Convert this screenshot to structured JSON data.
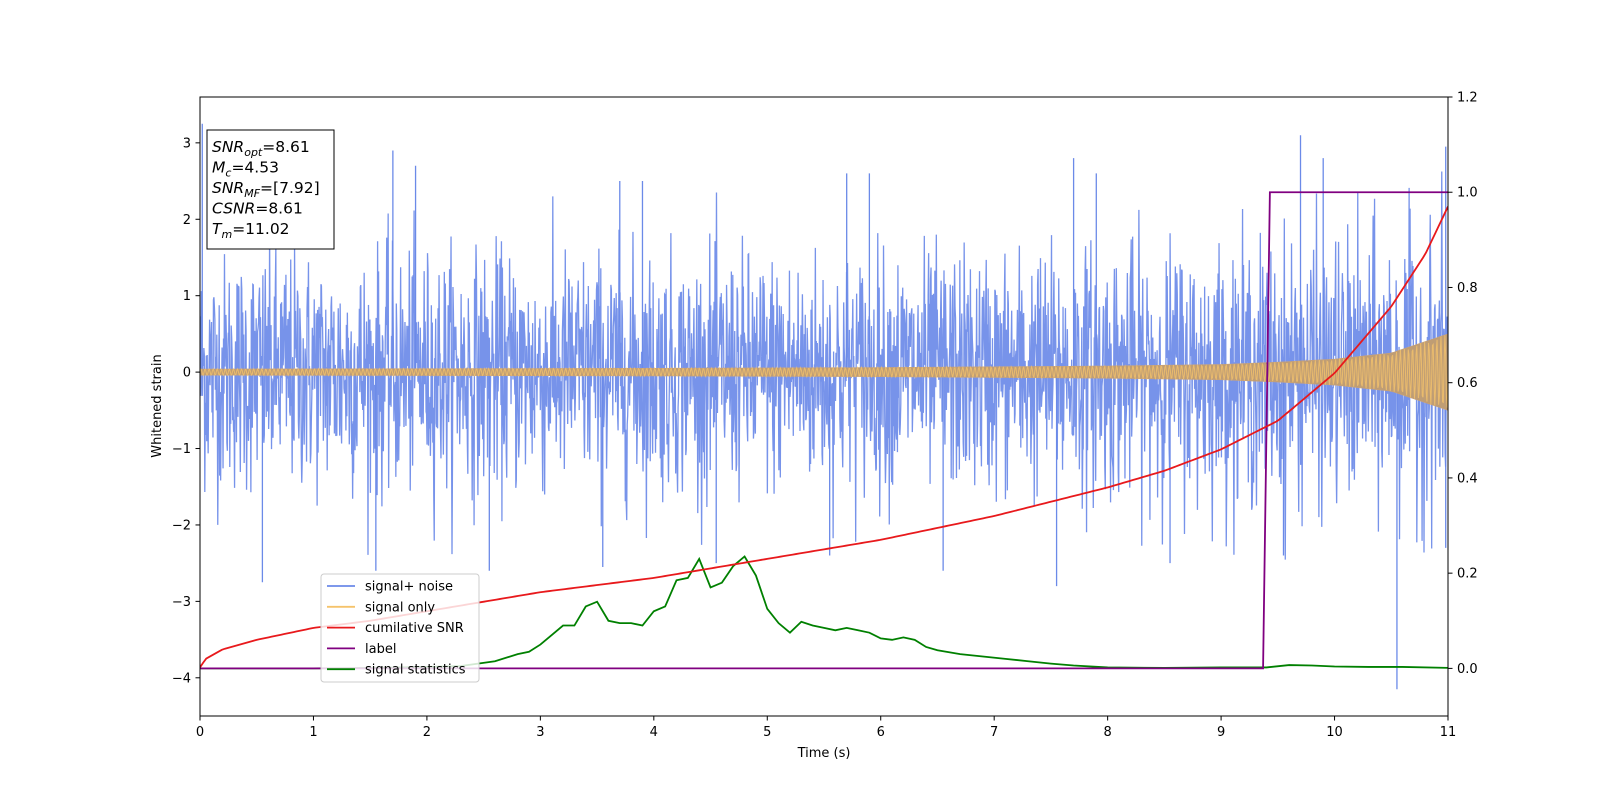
{
  "chart_data": {
    "type": "line",
    "xlabel": "Time (s)",
    "ylabel": "Whitened strain",
    "xlim": [
      0,
      11
    ],
    "ylim": [
      -4.5,
      3.6
    ],
    "y2lim": [
      -0.1,
      1.2
    ],
    "xticks": [
      "0",
      "1",
      "2",
      "3",
      "4",
      "5",
      "6",
      "7",
      "8",
      "9",
      "10",
      "11"
    ],
    "yticks": [
      "3",
      "2",
      "1",
      "0",
      "−1",
      "−2",
      "−3",
      "−4"
    ],
    "y2ticks": [
      "1.2",
      "1.0",
      "0.8",
      "0.6",
      "0.4",
      "0.2",
      "0.0"
    ],
    "grid": false,
    "legend_position": "lower-left",
    "annotation": {
      "lines": [
        {
          "sym": "SNR",
          "sub": "opt",
          "text": "=8.61"
        },
        {
          "sym": "M",
          "sub": "c",
          "text": "=4.53"
        },
        {
          "sym": "SNR",
          "sub": "MF",
          "text": "=[7.92]"
        },
        {
          "sym": "CSNR",
          "sub": "",
          "text": "=8.61"
        },
        {
          "sym": "T",
          "sub": "m",
          "text": "=11.02"
        }
      ]
    },
    "series": [
      {
        "name": "signal+ noise",
        "axis": "left",
        "color": "#6b8ae8",
        "description_bands": {
          "x": [
            0,
            1,
            2,
            3,
            4,
            5,
            6,
            7,
            8,
            9,
            10,
            11
          ],
          "typical_max": [
            1.6,
            1.6,
            1.6,
            1.6,
            1.6,
            1.6,
            1.6,
            1.6,
            1.7,
            1.7,
            1.8,
            1.9
          ],
          "typical_min": [
            -1.6,
            -1.6,
            -1.6,
            -1.6,
            -1.6,
            -1.6,
            -1.6,
            -1.6,
            -1.7,
            -1.7,
            -1.8,
            -1.9
          ],
          "peaks_max": [
            3.25,
            2.9,
            2.7,
            2.5,
            2.5,
            2.6,
            2.6,
            2.8,
            2.6,
            3.1,
            2.8,
            2.95
          ],
          "peaks_min": [
            -2.75,
            -2.6,
            -2.6,
            -2.55,
            -2.5,
            -2.4,
            -2.6,
            -2.8,
            -2.5,
            -2.4,
            -4.15,
            -2.3
          ]
        }
      },
      {
        "name": "signal only",
        "axis": "left",
        "color": "#f5c36b",
        "envelope": {
          "x": [
            0,
            2,
            4,
            6,
            7,
            8,
            9,
            9.5,
            10,
            10.5,
            11
          ],
          "amp": [
            0.04,
            0.045,
            0.05,
            0.06,
            0.07,
            0.08,
            0.1,
            0.13,
            0.17,
            0.25,
            0.5
          ]
        }
      },
      {
        "name": "cumilative SNR",
        "axis": "right",
        "color": "#e8191c",
        "x": [
          0,
          0.05,
          0.2,
          0.5,
          1,
          1.5,
          2,
          2.5,
          3,
          3.5,
          4,
          4.5,
          5,
          5.5,
          6,
          6.5,
          7,
          7.5,
          8,
          8.5,
          9,
          9.5,
          10,
          10.5,
          10.8,
          11
        ],
        "values": [
          0.002,
          0.02,
          0.04,
          0.06,
          0.085,
          0.1,
          0.12,
          0.14,
          0.16,
          0.175,
          0.19,
          0.21,
          0.23,
          0.25,
          0.27,
          0.295,
          0.32,
          0.35,
          0.38,
          0.415,
          0.46,
          0.52,
          0.62,
          0.76,
          0.87,
          0.97
        ]
      },
      {
        "name": "label",
        "axis": "right",
        "color": "#800080",
        "x": [
          0,
          9.37,
          9.43,
          11
        ],
        "values": [
          0,
          0,
          1,
          1
        ]
      },
      {
        "name": "signal statistics",
        "axis": "right",
        "color": "#008000",
        "x": [
          0,
          0.5,
          1,
          1.5,
          2,
          2.3,
          2.6,
          2.8,
          2.9,
          3.0,
          3.1,
          3.2,
          3.3,
          3.4,
          3.5,
          3.6,
          3.7,
          3.8,
          3.9,
          4.0,
          4.1,
          4.2,
          4.3,
          4.4,
          4.5,
          4.6,
          4.7,
          4.8,
          4.9,
          5.0,
          5.1,
          5.2,
          5.3,
          5.4,
          5.5,
          5.6,
          5.7,
          5.8,
          5.9,
          6.0,
          6.1,
          6.2,
          6.3,
          6.4,
          6.5,
          6.7,
          6.9,
          7.1,
          7.3,
          7.5,
          7.7,
          8.0,
          8.5,
          9.0,
          9.4,
          9.6,
          9.8,
          10.0,
          10.3,
          10.6,
          11
        ],
        "values": [
          0,
          0,
          0,
          0.001,
          0.003,
          0.005,
          0.015,
          0.03,
          0.035,
          0.05,
          0.07,
          0.09,
          0.09,
          0.13,
          0.14,
          0.1,
          0.095,
          0.095,
          0.09,
          0.12,
          0.13,
          0.185,
          0.19,
          0.23,
          0.17,
          0.18,
          0.215,
          0.235,
          0.195,
          0.125,
          0.095,
          0.075,
          0.098,
          0.09,
          0.085,
          0.08,
          0.085,
          0.08,
          0.075,
          0.063,
          0.06,
          0.065,
          0.06,
          0.045,
          0.038,
          0.03,
          0.025,
          0.02,
          0.015,
          0.01,
          0.006,
          0.002,
          0.001,
          0.002,
          0.002,
          0.007,
          0.006,
          0.004,
          0.003,
          0.003,
          0.001
        ]
      }
    ]
  }
}
